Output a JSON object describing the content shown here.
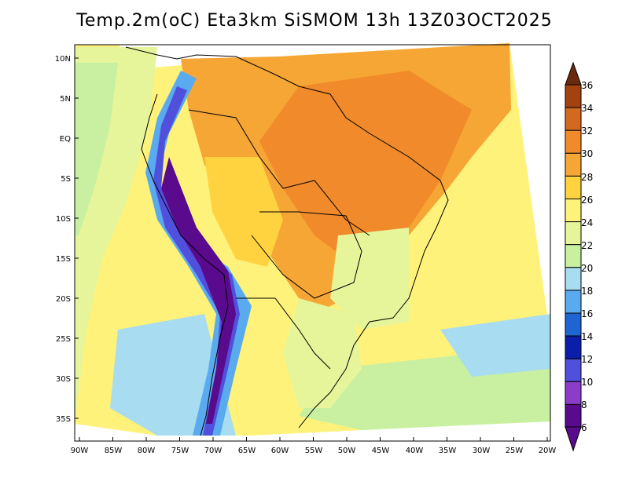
{
  "title": "Temp.2m(oC) Eta3km SiSMOM 13h 13Z03OCT2025",
  "lat_labels": [
    "10N",
    "5N",
    "EQ",
    "5S",
    "10S",
    "15S",
    "20S",
    "25S",
    "30S",
    "35S"
  ],
  "lon_labels": [
    "90W",
    "85W",
    "80W",
    "75W",
    "70W",
    "65W",
    "60W",
    "55W",
    "50W",
    "45W",
    "40W",
    "35W",
    "30W",
    "25W",
    "20W"
  ],
  "colorbar": {
    "labels": [
      "36",
      "34",
      "32",
      "30",
      "28",
      "26",
      "24",
      "22",
      "20",
      "18",
      "16",
      "14",
      "12",
      "10",
      "8",
      "6"
    ],
    "colors": [
      "#6b2a0e",
      "#a3420f",
      "#d2691e",
      "#f08a2a",
      "#f6a634",
      "#ffd23f",
      "#fff27a",
      "#e6f59a",
      "#c8f0a0",
      "#a8dcf0",
      "#5aaaf0",
      "#1e64d2",
      "#0a1eaa",
      "#5050dc",
      "#8c3cc8",
      "#5a0a8c"
    ]
  },
  "icons": {
    "top_arrow": "triangle-up-icon",
    "bottom_arrow": "triangle-down-icon"
  }
}
